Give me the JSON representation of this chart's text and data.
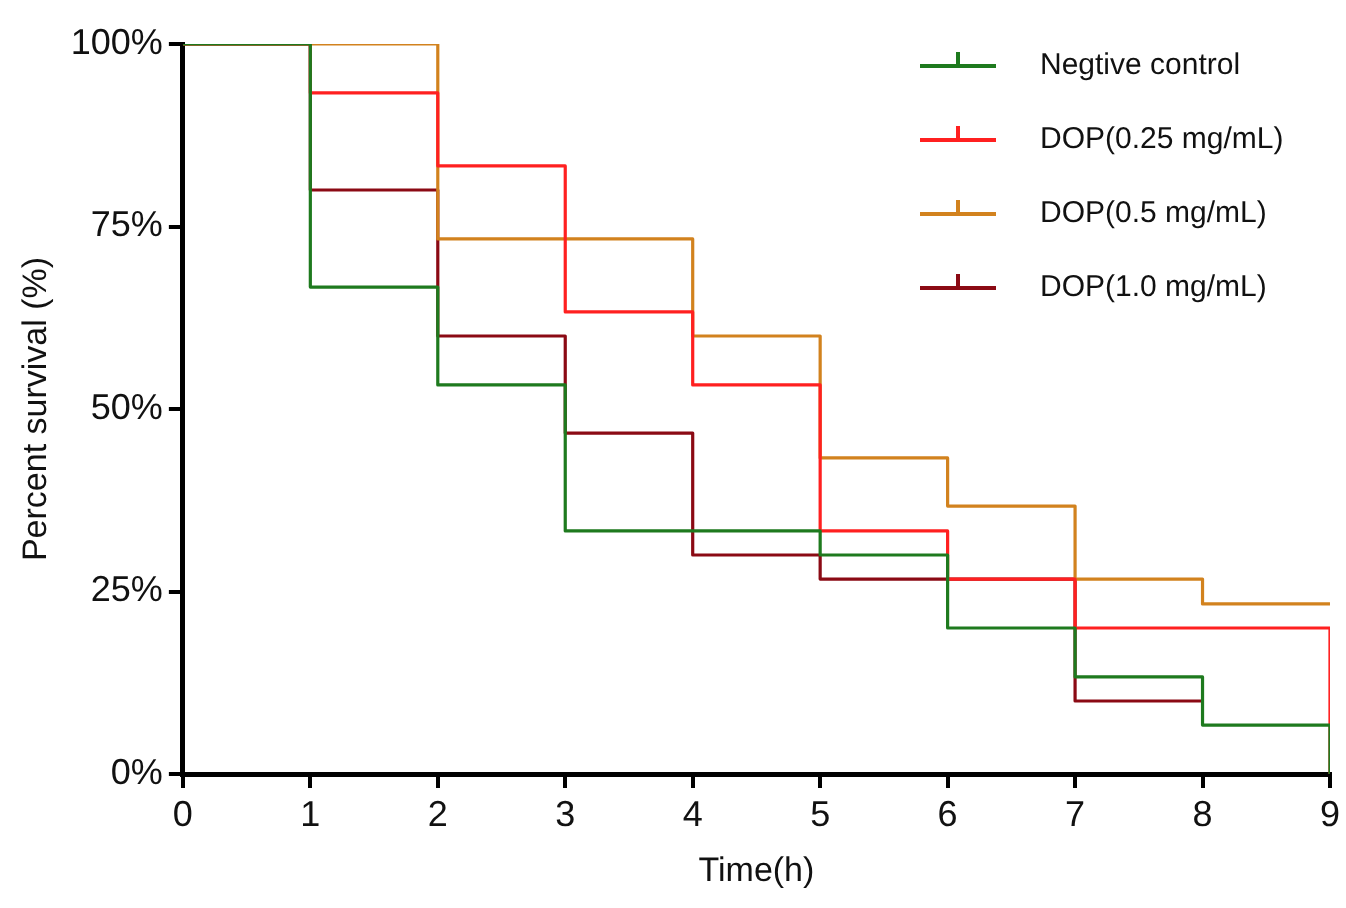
{
  "chart_data": {
    "type": "step",
    "xlabel": "Time(h)",
    "ylabel": "Percent survival (%)",
    "x": [
      0,
      1,
      2,
      3,
      4,
      5,
      6,
      7,
      8,
      9
    ],
    "series": [
      {
        "name": "Negtive control",
        "color": "#1e7a1e",
        "values": [
          100,
          66.7,
          53.3,
          33.3,
          33.3,
          30,
          20,
          13.3,
          6.7,
          0
        ]
      },
      {
        "name": "DOP(0.25 mg/mL)",
        "color": "#ff2020",
        "values": [
          100,
          93.3,
          83.3,
          63.3,
          53.3,
          33.3,
          26.7,
          20,
          20,
          0
        ]
      },
      {
        "name": "DOP(0.5 mg/mL)",
        "color": "#d2821e",
        "values": [
          100,
          100,
          73.3,
          73.3,
          60,
          43.3,
          36.7,
          26.7,
          23.3,
          23.3
        ]
      },
      {
        "name": "DOP(1.0 mg/mL)",
        "color": "#8b0a14",
        "values": [
          100,
          80,
          60,
          46.7,
          30,
          26.7,
          26.7,
          10,
          10,
          null
        ]
      }
    ],
    "xlim": [
      0,
      9
    ],
    "xticks": [
      0,
      1,
      2,
      3,
      4,
      5,
      6,
      7,
      8,
      9
    ],
    "ylim": [
      0,
      100
    ],
    "yticks": [
      {
        "value": 0,
        "label": "0%"
      },
      {
        "value": 25,
        "label": "25%"
      },
      {
        "value": 50,
        "label": "50%"
      },
      {
        "value": 75,
        "label": "75%"
      },
      {
        "value": 100,
        "label": "100%"
      }
    ],
    "grid": false,
    "legend": "top right",
    "marker": "none",
    "line_style": "solid"
  }
}
